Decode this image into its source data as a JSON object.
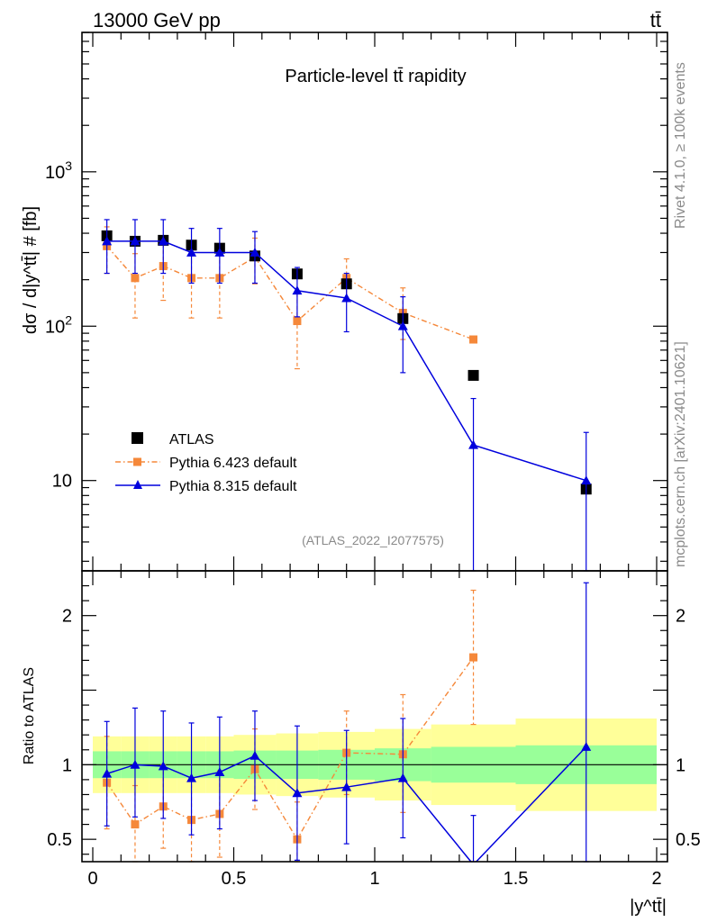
{
  "header": {
    "energy_label": "13000 GeV pp",
    "process_label": "tt̄"
  },
  "side_labels": {
    "rivet": "Rivet 4.1.0, ≥ 100k events",
    "mcplots": "mcplots.cern.ch [arXiv:2401.10621]"
  },
  "colors": {
    "atlas": "#000000",
    "pythia6": "#f5883a",
    "pythia8": "#0000dd",
    "band_inner": "#99ff99",
    "band_outer": "#ffff99"
  },
  "chart_data": {
    "type": "scatter",
    "title": "Particle-level tt̄ rapidity",
    "analysis_label": "(ATLAS_2022_I2077575)",
    "xlabel": "|y^tt̄|",
    "ylabel": "dσ / d|y^tt̄| # [fb]",
    "ratio_ylabel": "Ratio to ATLAS",
    "xlim": [
      0,
      2
    ],
    "ylim": [
      2.6,
      8000
    ],
    "ratio_ylim": [
      0.35,
      2.3
    ],
    "x_ticks": [
      0,
      0.5,
      1,
      1.5,
      2
    ],
    "x_tick_labels": [
      "0",
      "0.5",
      "1",
      "1.5",
      "2"
    ],
    "y_ticks": [
      10,
      100,
      1000
    ],
    "y_tick_labels": [
      "10",
      "10²",
      "10³"
    ],
    "ratio_ticks": [
      0.5,
      1,
      2
    ],
    "ratio_tick_labels": [
      "0.5",
      "1",
      "2"
    ],
    "bin_edges": [
      0,
      0.1,
      0.2,
      0.3,
      0.4,
      0.5,
      0.65,
      0.8,
      1.0,
      1.2,
      1.5,
      2.0
    ],
    "series": [
      {
        "name": "ATLAS",
        "key": "atlas",
        "x": [
          0.05,
          0.15,
          0.25,
          0.35,
          0.45,
          0.575,
          0.725,
          0.9,
          1.1,
          1.35,
          1.75
        ],
        "y": [
          385,
          355,
          360,
          335,
          320,
          285,
          218,
          188,
          112,
          48,
          8.8
        ]
      },
      {
        "name": "Pythia 6.423 default",
        "key": "pythia6",
        "x": [
          0.05,
          0.15,
          0.25,
          0.35,
          0.45,
          0.575,
          0.725,
          0.9,
          1.1,
          1.35,
          1.75
        ],
        "y": [
          330,
          205,
          245,
          205,
          205,
          280,
          108,
          205,
          122,
          82,
          null
        ],
        "err_lo": [
          110,
          92,
          98,
          92,
          92,
          92,
          55,
          55,
          40,
          0,
          null
        ],
        "err_hi": [
          110,
          90,
          96,
          90,
          90,
          92,
          55,
          68,
          55,
          0,
          null
        ],
        "ratio": [
          0.88,
          0.6,
          0.72,
          0.63,
          0.67,
          0.97,
          0.5,
          1.08,
          1.07,
          1.72,
          null
        ],
        "ratio_err_lo": [
          0.31,
          0.26,
          0.28,
          0.28,
          0.29,
          0.27,
          0.25,
          0.28,
          0.39,
          0.45,
          null
        ],
        "ratio_err_hi": [
          0.31,
          0.26,
          0.28,
          0.28,
          0.29,
          0.27,
          0.25,
          0.28,
          0.4,
          0.45,
          null
        ]
      },
      {
        "name": "Pythia 8.315 default",
        "key": "pythia8",
        "x": [
          0.05,
          0.15,
          0.25,
          0.35,
          0.45,
          0.575,
          0.725,
          0.9,
          1.1,
          1.35,
          1.75
        ],
        "y": [
          355,
          355,
          355,
          300,
          300,
          300,
          170,
          152,
          100,
          17,
          10
        ],
        "err_lo": [
          135,
          135,
          135,
          110,
          110,
          110,
          55,
          60,
          50,
          17,
          10
        ],
        "err_hi": [
          135,
          135,
          135,
          130,
          130,
          110,
          70,
          68,
          55,
          17,
          10.5
        ],
        "ratio": [
          0.94,
          1.0,
          0.99,
          0.91,
          0.95,
          1.06,
          0.81,
          0.85,
          0.91,
          0.33,
          1.12
        ],
        "ratio_err_lo": [
          0.35,
          0.35,
          0.35,
          0.38,
          0.38,
          0.3,
          0.45,
          0.38,
          0.4,
          0.33,
          0.8
        ],
        "ratio_err_hi": [
          0.35,
          0.38,
          0.37,
          0.37,
          0.37,
          0.3,
          0.45,
          0.38,
          0.4,
          0.33,
          1.1
        ]
      }
    ],
    "band_inner": [
      0.09,
      0.09,
      0.09,
      0.09,
      0.09,
      0.095,
      0.095,
      0.1,
      0.11,
      0.12,
      0.13
    ],
    "band_outer": [
      0.19,
      0.19,
      0.19,
      0.19,
      0.19,
      0.2,
      0.21,
      0.22,
      0.24,
      0.27,
      0.31
    ]
  }
}
